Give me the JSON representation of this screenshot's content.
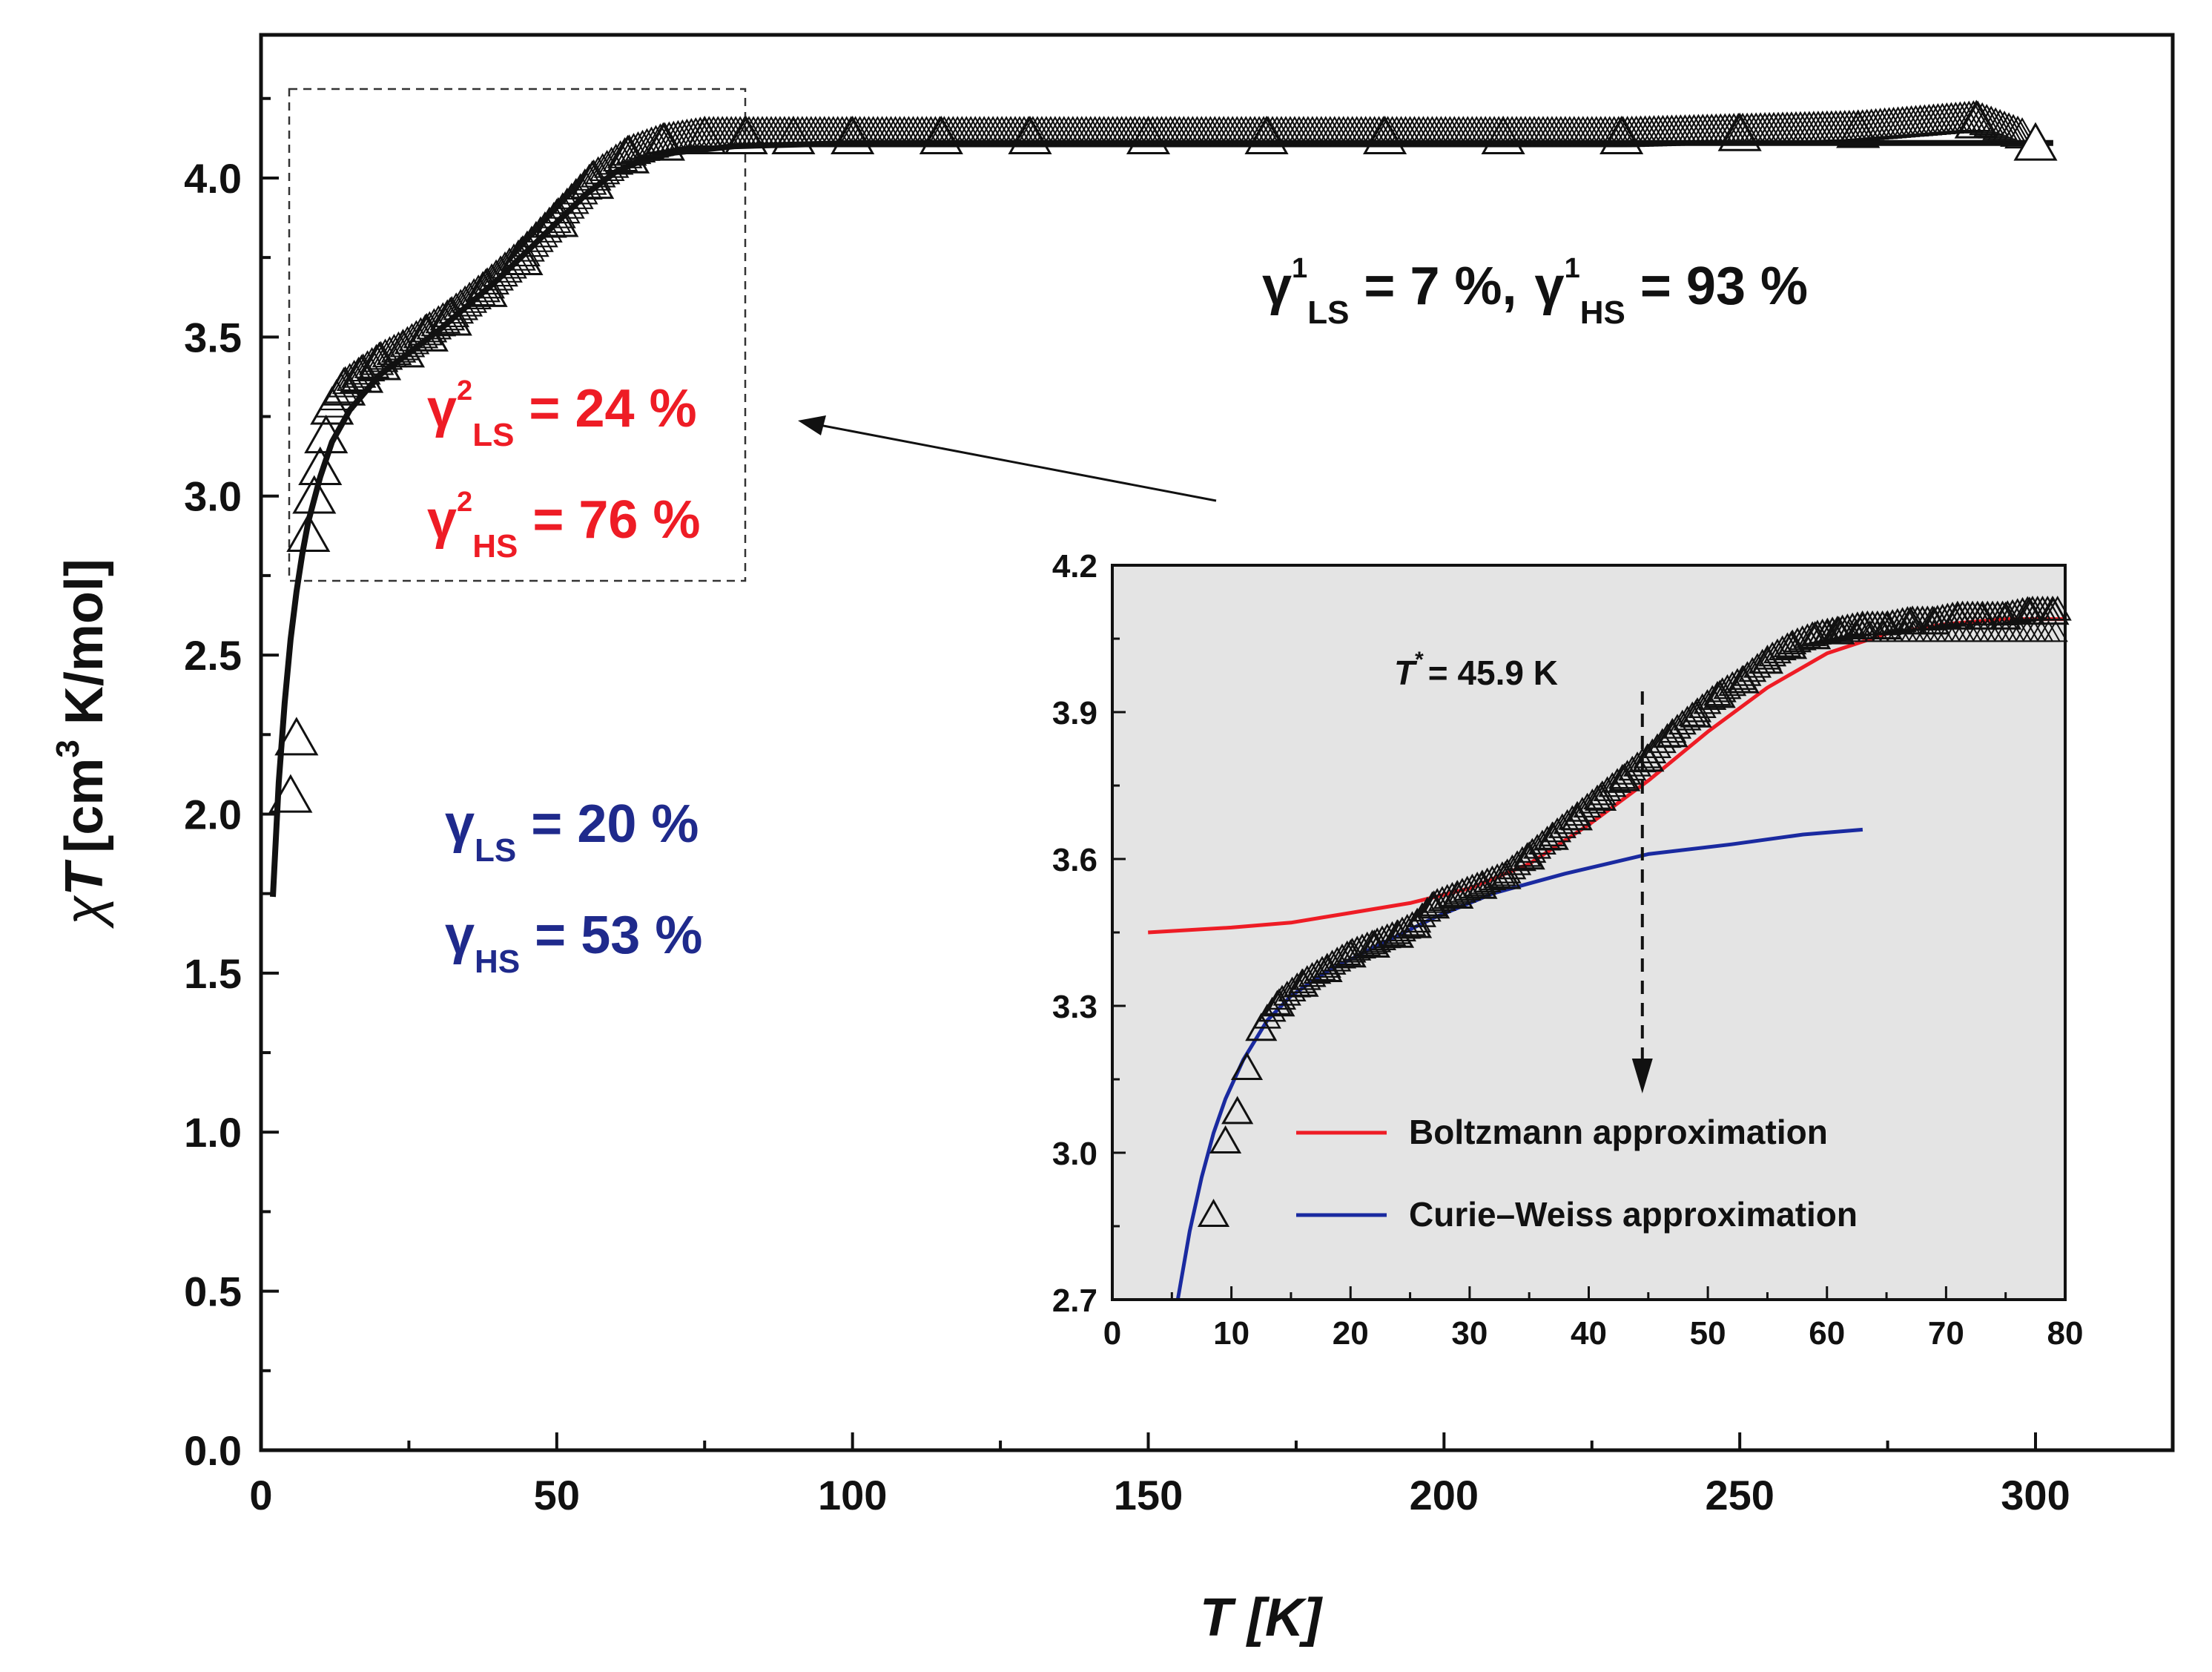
{
  "colors": {
    "red": "#ee1c25",
    "navy": "#1f2a8c",
    "inset_red": "#ee1c25",
    "inset_blue": "#1a2aa0",
    "inset_bg": "#e4e4e4",
    "ink": "#111111"
  },
  "chart_data": [
    {
      "id": "main",
      "type": "scatter",
      "xlabel": "T [K]",
      "ylabel_chi": "χ",
      "ylabel_T": "T",
      "ylabel_rest": "[cm",
      "ylabel_sup": "3",
      "ylabel_units": " K/mol]",
      "xlim": [
        0,
        325
      ],
      "ylim": [
        0,
        4.45
      ],
      "x_ticks": [
        0,
        50,
        100,
        150,
        200,
        250,
        300
      ],
      "y_ticks": [
        0.0,
        0.5,
        1.0,
        1.5,
        2.0,
        2.5,
        3.0,
        3.5,
        4.0
      ],
      "y_tick_labels": [
        "0.0",
        "0.5",
        "1.0",
        "1.5",
        "2.0",
        "2.5",
        "3.0",
        "3.5",
        "4.0"
      ],
      "series": [
        {
          "name": "data (triangles)",
          "marker": "open-triangle",
          "x": [
            5,
            6,
            8,
            9,
            10,
            11,
            12,
            14,
            17,
            20,
            24,
            28,
            32,
            38,
            44,
            50,
            56,
            62,
            68,
            75,
            82,
            90,
            100,
            115,
            130,
            150,
            170,
            190,
            210,
            230,
            250,
            270,
            290,
            300
          ],
          "y": [
            2.05,
            2.23,
            2.87,
            2.99,
            3.08,
            3.18,
            3.27,
            3.33,
            3.37,
            3.41,
            3.45,
            3.5,
            3.55,
            3.64,
            3.74,
            3.86,
            3.98,
            4.06,
            4.1,
            4.12,
            4.12,
            4.12,
            4.12,
            4.12,
            4.12,
            4.12,
            4.12,
            4.12,
            4.12,
            4.12,
            4.13,
            4.14,
            4.17,
            4.1
          ]
        },
        {
          "name": "fit",
          "type": "line",
          "x": [
            2,
            3,
            4,
            5,
            6,
            7,
            8,
            10,
            12,
            15,
            20,
            25,
            30,
            35,
            40,
            45,
            50,
            55,
            60,
            65,
            70,
            80,
            100,
            150,
            200,
            250,
            300,
            303
          ],
          "y": [
            1.74,
            2.1,
            2.35,
            2.55,
            2.7,
            2.82,
            2.92,
            3.06,
            3.17,
            3.27,
            3.38,
            3.45,
            3.52,
            3.6,
            3.68,
            3.77,
            3.86,
            3.95,
            4.02,
            4.06,
            4.08,
            4.1,
            4.11,
            4.11,
            4.11,
            4.11,
            4.11,
            4.11
          ]
        }
      ],
      "annotations": {
        "global": {
          "gamma": "γ",
          "sup": "1",
          "sub_ls": "LS",
          "sub_hs": "HS",
          "ls_value": " = 7 %,",
          "hs_value": " = 93 %"
        },
        "zoom": {
          "gamma": "γ",
          "sup": "2",
          "sub_ls": "LS",
          "sub_hs": "HS",
          "ls_value": " = 24 %",
          "hs_value": " = 76 %"
        },
        "total": {
          "gamma": "γ",
          "sub_ls": "LS",
          "sub_hs": "HS",
          "ls_value": " = 20 %",
          "hs_value": " = 53 %"
        }
      }
    },
    {
      "id": "inset",
      "type": "scatter",
      "xlim": [
        0,
        80
      ],
      "ylim": [
        2.7,
        4.2
      ],
      "x_ticks": [
        0,
        10,
        20,
        30,
        40,
        50,
        60,
        70,
        80
      ],
      "y_ticks": [
        2.7,
        3.0,
        3.3,
        3.6,
        3.9,
        4.2
      ],
      "y_tick_labels": [
        "2.7",
        "3.0",
        "3.3",
        "3.6",
        "3.9",
        "4.2"
      ],
      "t_star": {
        "symbol": "T",
        "sup": "*",
        "text": "= 45.9 K",
        "x": 44.5
      },
      "series": [
        {
          "name": "data (triangles)",
          "marker": "open-triangle",
          "x": [
            8.5,
            9.5,
            10.5,
            11.3,
            12.5,
            14,
            16,
            18,
            20,
            22,
            24,
            25.5,
            27,
            29,
            31,
            33,
            35,
            37,
            39,
            41,
            43,
            45,
            47,
            49,
            51,
            53,
            55,
            57,
            59,
            61,
            63,
            65,
            67,
            69,
            71,
            73,
            75,
            77,
            79
          ],
          "y": [
            2.87,
            3.02,
            3.08,
            3.17,
            3.25,
            3.3,
            3.34,
            3.37,
            3.4,
            3.42,
            3.44,
            3.46,
            3.5,
            3.52,
            3.54,
            3.56,
            3.6,
            3.64,
            3.68,
            3.72,
            3.76,
            3.8,
            3.85,
            3.89,
            3.93,
            3.96,
            4.0,
            4.03,
            4.05,
            4.06,
            4.07,
            4.07,
            4.08,
            4.08,
            4.09,
            4.09,
            4.09,
            4.1,
            4.1
          ]
        },
        {
          "name": "Boltzmann approximation",
          "type": "line",
          "color": "#ee1c25",
          "x": [
            3,
            10,
            15,
            20,
            25,
            30,
            35,
            40,
            45,
            50,
            55,
            60,
            65,
            70,
            75,
            80
          ],
          "y": [
            3.45,
            3.46,
            3.47,
            3.49,
            3.51,
            3.54,
            3.59,
            3.67,
            3.76,
            3.86,
            3.95,
            4.02,
            4.06,
            4.08,
            4.09,
            4.09
          ]
        },
        {
          "name": "Curie–Weiss approximation",
          "type": "line",
          "color": "#1a2aa0",
          "x": [
            5.5,
            6.5,
            7.5,
            8.5,
            9.5,
            11,
            13,
            15,
            18,
            22,
            27,
            32,
            38,
            45,
            52,
            58,
            63
          ],
          "y": [
            2.7,
            2.84,
            2.95,
            3.04,
            3.11,
            3.19,
            3.27,
            3.32,
            3.37,
            3.42,
            3.48,
            3.53,
            3.57,
            3.61,
            3.63,
            3.65,
            3.66
          ]
        }
      ],
      "legend": [
        {
          "label": "Boltzmann approximation",
          "color": "#ee1c25"
        },
        {
          "label": "Curie–Weiss approximation",
          "color": "#1a2aa0"
        }
      ]
    }
  ]
}
